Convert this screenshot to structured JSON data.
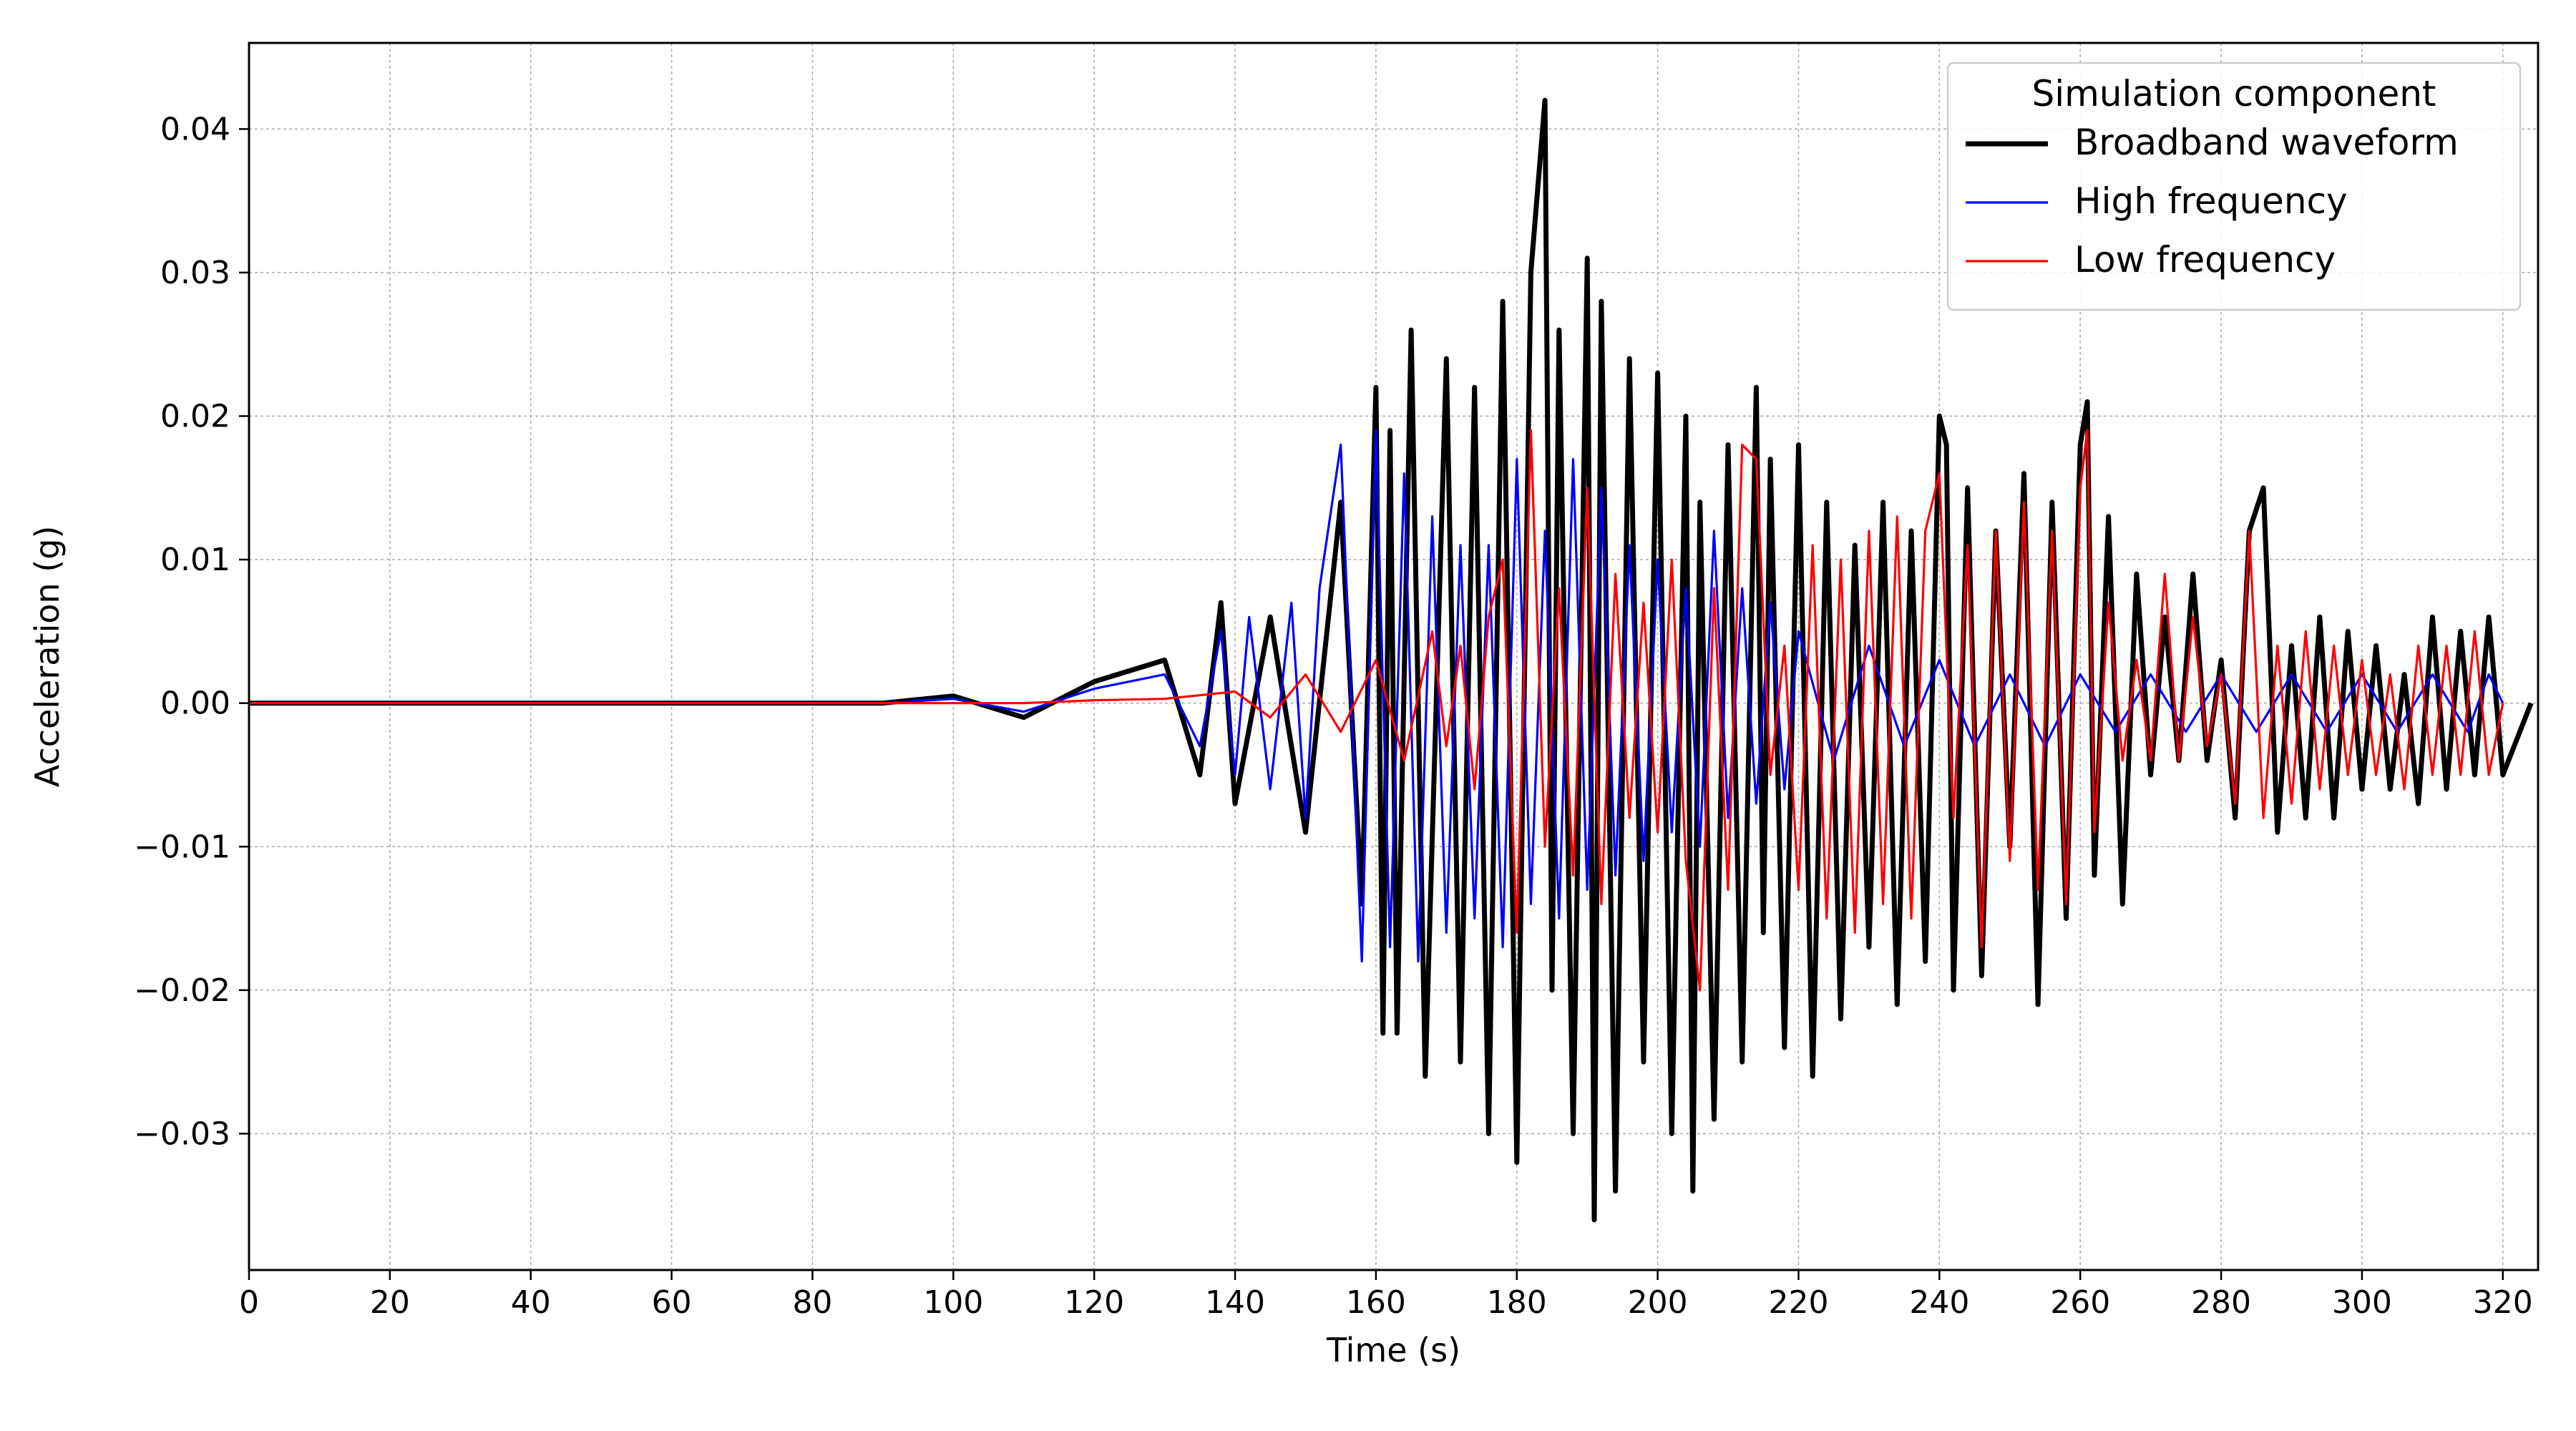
{
  "chart_data": {
    "type": "line",
    "title": "",
    "xlabel": "Time (s)",
    "ylabel": "Acceleration (g)",
    "xlim": [
      0,
      325
    ],
    "ylim": [
      -0.0395,
      0.046
    ],
    "xticks": [
      0,
      20,
      40,
      60,
      80,
      100,
      120,
      140,
      160,
      180,
      200,
      220,
      240,
      260,
      280,
      300,
      320
    ],
    "xtick_labels": [
      "0",
      "20",
      "40",
      "60",
      "80",
      "100",
      "120",
      "140",
      "160",
      "180",
      "200",
      "220",
      "240",
      "260",
      "280",
      "300",
      "320"
    ],
    "yticks": [
      0.04,
      0.03,
      0.02,
      0.01,
      0.0,
      -0.01,
      -0.02,
      -0.03
    ],
    "ytick_labels": [
      "0.04",
      "0.03",
      "0.02",
      "0.01",
      "0.00",
      "−0.01",
      "−0.02",
      "−0.03"
    ],
    "grid": true,
    "legend": {
      "title": "Simulation component",
      "placement": "top-right"
    },
    "series": [
      {
        "name": "Broadband waveform",
        "color": "#000000",
        "x": [
          0,
          90,
          100,
          110,
          120,
          130,
          135,
          138,
          140,
          145,
          150,
          155,
          158,
          160,
          161,
          162,
          163,
          165,
          167,
          170,
          172,
          174,
          176,
          178,
          180,
          182,
          184,
          185,
          186,
          188,
          190,
          191,
          192,
          194,
          196,
          198,
          200,
          202,
          204,
          205,
          206,
          208,
          210,
          212,
          214,
          215,
          216,
          218,
          220,
          222,
          224,
          226,
          228,
          230,
          232,
          234,
          236,
          238,
          240,
          241,
          242,
          244,
          246,
          248,
          250,
          252,
          254,
          256,
          258,
          260,
          261,
          262,
          264,
          266,
          268,
          270,
          272,
          274,
          276,
          278,
          280,
          282,
          284,
          286,
          288,
          290,
          292,
          294,
          296,
          298,
          300,
          302,
          304,
          306,
          308,
          310,
          312,
          314,
          316,
          318,
          320,
          324
        ],
        "y": [
          0,
          0,
          0.0005,
          -0.001,
          0.0015,
          0.003,
          -0.005,
          0.007,
          -0.007,
          0.006,
          -0.009,
          0.014,
          -0.014,
          0.022,
          -0.023,
          0.019,
          -0.023,
          0.026,
          -0.026,
          0.024,
          -0.025,
          0.022,
          -0.03,
          0.028,
          -0.032,
          0.03,
          0.042,
          -0.02,
          0.026,
          -0.03,
          0.031,
          -0.036,
          0.028,
          -0.034,
          0.024,
          -0.025,
          0.023,
          -0.03,
          0.02,
          -0.034,
          0.014,
          -0.029,
          0.018,
          -0.025,
          0.022,
          -0.016,
          0.017,
          -0.024,
          0.018,
          -0.026,
          0.014,
          -0.022,
          0.011,
          -0.017,
          0.014,
          -0.021,
          0.012,
          -0.018,
          0.02,
          0.018,
          -0.02,
          0.015,
          -0.019,
          0.012,
          -0.01,
          0.016,
          -0.021,
          0.014,
          -0.015,
          0.018,
          0.021,
          -0.012,
          0.013,
          -0.014,
          0.009,
          -0.005,
          0.006,
          -0.004,
          0.009,
          -0.004,
          0.003,
          -0.008,
          0.012,
          0.015,
          -0.009,
          0.004,
          -0.008,
          0.006,
          -0.008,
          0.005,
          -0.006,
          0.004,
          -0.006,
          0.002,
          -0.007,
          0.006,
          -0.006,
          0.005,
          -0.005,
          0.006,
          -0.005,
          0
        ]
      },
      {
        "name": "High frequency",
        "color": "#0000ff",
        "x": [
          0,
          90,
          100,
          110,
          120,
          130,
          135,
          138,
          140,
          142,
          145,
          148,
          150,
          152,
          155,
          158,
          160,
          162,
          164,
          166,
          168,
          170,
          172,
          174,
          176,
          178,
          180,
          182,
          184,
          186,
          188,
          190,
          192,
          194,
          196,
          198,
          200,
          202,
          204,
          206,
          208,
          210,
          212,
          214,
          216,
          218,
          220,
          225,
          230,
          235,
          240,
          245,
          250,
          255,
          260,
          265,
          270,
          275,
          280,
          285,
          290,
          295,
          300,
          305,
          310,
          315,
          318,
          320
        ],
        "y": [
          0,
          0,
          0.0003,
          -0.0006,
          0.001,
          0.002,
          -0.003,
          0.005,
          -0.005,
          0.006,
          -0.006,
          0.007,
          -0.008,
          0.008,
          0.018,
          -0.018,
          0.019,
          -0.017,
          0.016,
          -0.018,
          0.013,
          -0.016,
          0.011,
          -0.015,
          0.011,
          -0.017,
          0.017,
          -0.014,
          0.012,
          -0.015,
          0.017,
          -0.013,
          0.015,
          -0.012,
          0.011,
          -0.011,
          0.01,
          -0.009,
          0.008,
          -0.01,
          0.012,
          -0.008,
          0.008,
          -0.007,
          0.007,
          -0.006,
          0.005,
          -0.004,
          0.004,
          -0.003,
          0.003,
          -0.003,
          0.002,
          -0.003,
          0.002,
          -0.002,
          0.002,
          -0.002,
          0.002,
          -0.002,
          0.002,
          -0.002,
          0.002,
          -0.002,
          0.002,
          -0.002,
          0.002,
          0
        ]
      },
      {
        "name": "Low frequency",
        "color": "#ff0000",
        "x": [
          0,
          110,
          120,
          130,
          140,
          145,
          150,
          155,
          160,
          164,
          168,
          170,
          172,
          174,
          176,
          178,
          180,
          182,
          184,
          186,
          188,
          190,
          192,
          194,
          196,
          198,
          200,
          202,
          204,
          206,
          208,
          210,
          212,
          214,
          216,
          218,
          220,
          222,
          224,
          226,
          228,
          230,
          232,
          234,
          236,
          238,
          240,
          242,
          244,
          246,
          248,
          250,
          252,
          254,
          256,
          258,
          260,
          261,
          262,
          264,
          266,
          268,
          270,
          272,
          274,
          276,
          278,
          280,
          282,
          284,
          286,
          288,
          290,
          292,
          294,
          296,
          298,
          300,
          302,
          304,
          306,
          308,
          310,
          312,
          314,
          316,
          318,
          320
        ],
        "y": [
          0,
          0,
          0.0002,
          0.0003,
          0.0008,
          -0.001,
          0.002,
          -0.002,
          0.003,
          -0.004,
          0.005,
          -0.003,
          0.004,
          -0.006,
          0.006,
          0.01,
          -0.016,
          0.019,
          -0.01,
          0.008,
          -0.012,
          0.015,
          -0.014,
          0.009,
          -0.008,
          0.007,
          -0.009,
          0.01,
          -0.011,
          -0.02,
          0.008,
          -0.013,
          0.018,
          0.017,
          -0.005,
          0.004,
          -0.013,
          0.011,
          -0.015,
          0.01,
          -0.016,
          0.012,
          -0.014,
          0.013,
          -0.015,
          0.012,
          0.016,
          -0.008,
          0.011,
          -0.017,
          0.012,
          -0.011,
          0.014,
          -0.013,
          0.012,
          -0.014,
          0.015,
          0.019,
          -0.009,
          0.007,
          -0.004,
          0.003,
          -0.004,
          0.009,
          -0.004,
          0.006,
          -0.003,
          0.002,
          -0.007,
          0.012,
          -0.008,
          0.004,
          -0.007,
          0.005,
          -0.006,
          0.004,
          -0.005,
          0.003,
          -0.005,
          0.002,
          -0.006,
          0.004,
          -0.005,
          0.004,
          -0.005,
          0.005,
          -0.005,
          0
        ]
      }
    ]
  }
}
